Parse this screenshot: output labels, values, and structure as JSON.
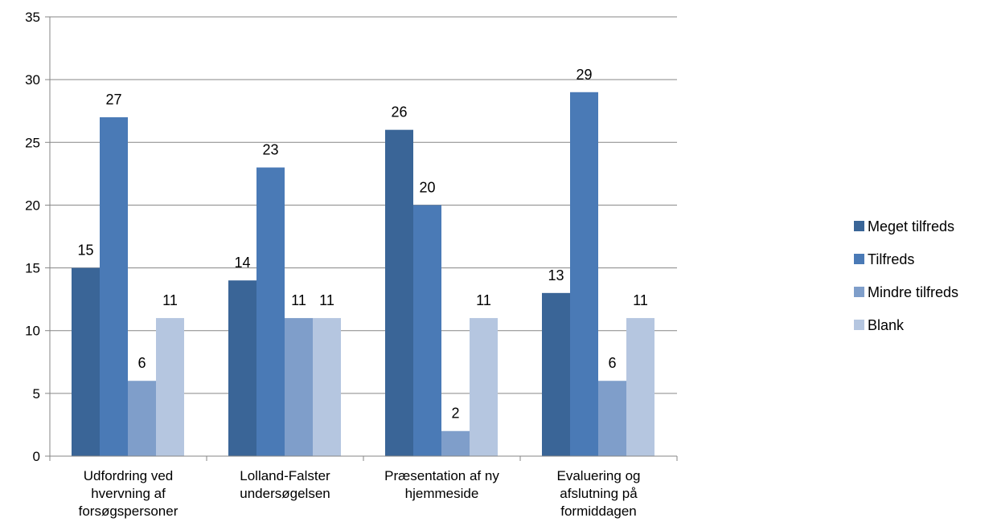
{
  "chart_data": {
    "type": "bar",
    "title": "",
    "xlabel": "",
    "ylabel": "",
    "ylim": [
      0,
      35
    ],
    "yticks": [
      0,
      5,
      10,
      15,
      20,
      25,
      30,
      35
    ],
    "grid": true,
    "legend_position": "right",
    "categories": [
      [
        "Udfordring ved",
        "hvervning af",
        "forsøgspersoner"
      ],
      [
        "Lolland-Falster",
        "undersøgelsen"
      ],
      [
        "Præsentation af ny",
        "hjemmeside"
      ],
      [
        "Evaluering og",
        "afslutning på",
        "formiddagen"
      ]
    ],
    "series": [
      {
        "name": "Meget tilfreds",
        "color": "#3A6597",
        "values": [
          15,
          14,
          26,
          13
        ]
      },
      {
        "name": "Tilfreds",
        "color": "#4A7AB6",
        "values": [
          27,
          23,
          20,
          29
        ]
      },
      {
        "name": "Mindre tilfreds",
        "color": "#7F9ECA",
        "values": [
          6,
          11,
          2,
          6
        ]
      },
      {
        "name": "Blank",
        "color": "#B5C6E0",
        "values": [
          11,
          11,
          11,
          11
        ]
      }
    ]
  }
}
